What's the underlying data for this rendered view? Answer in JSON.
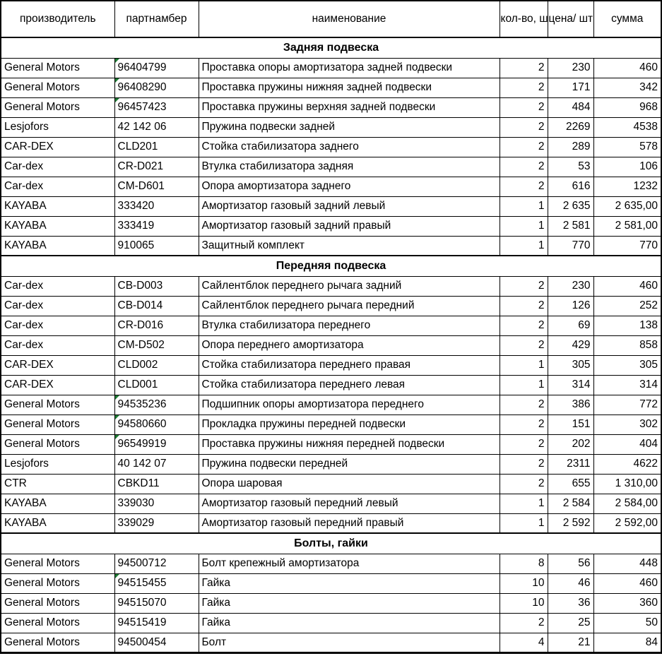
{
  "table": {
    "header": [
      "производитель",
      "партнамбер",
      "наименование",
      "кол-во,\nшт",
      "цена/\nшт",
      "сумма"
    ],
    "sections": [
      {
        "title": "Задняя подвеска",
        "rows": [
          {
            "manufacturer": "General Motors",
            "partnumber": "96404799",
            "name": "Проставка опоры амортизатора задней подвески",
            "qty": "2",
            "price": "230",
            "sum": "460",
            "flag": true
          },
          {
            "manufacturer": "General Motors",
            "partnumber": "96408290",
            "name": "Проставка пружины нижняя задней подвески",
            "qty": "2",
            "price": "171",
            "sum": "342",
            "flag": true
          },
          {
            "manufacturer": "General Motors",
            "partnumber": "96457423",
            "name": "Проставка пружины верхняя задней подвески",
            "qty": "2",
            "price": "484",
            "sum": "968",
            "flag": true
          },
          {
            "manufacturer": "Lesjofors",
            "partnumber": "42 142 06",
            "name": "Пружина подвески задней",
            "qty": "2",
            "price": "2269",
            "sum": "4538",
            "flag": false
          },
          {
            "manufacturer": "CAR-DEX",
            "partnumber": "CLD201",
            "name": "Стойка стабилизатора заднего",
            "qty": "2",
            "price": "289",
            "sum": "578",
            "flag": false
          },
          {
            "manufacturer": "Car-dex",
            "partnumber": "CR-D021",
            "name": "Втулка стабилизатора задняя",
            "qty": "2",
            "price": "53",
            "sum": "106",
            "flag": false
          },
          {
            "manufacturer": "Car-dex",
            "partnumber": "CM-D601",
            "name": "Опора амортизатора заднего",
            "qty": "2",
            "price": "616",
            "sum": "1232",
            "flag": false
          },
          {
            "manufacturer": "KAYABA",
            "partnumber": "333420",
            "name": "Амортизатор газовый задний левый",
            "qty": "1",
            "price": "2 635",
            "sum": "2 635,00",
            "flag": false
          },
          {
            "manufacturer": "KAYABA",
            "partnumber": "333419",
            "name": "Амортизатор газовый задний правый",
            "qty": "1",
            "price": "2 581",
            "sum": "2 581,00",
            "flag": false
          },
          {
            "manufacturer": "KAYABA",
            "partnumber": "910065",
            "name": "Защитный комплект",
            "qty": "1",
            "price": "770",
            "sum": "770",
            "flag": false
          }
        ]
      },
      {
        "title": "Передняя подвеска",
        "rows": [
          {
            "manufacturer": "Car-dex",
            "partnumber": "CB-D003",
            "name": "Сайлентблок переднего рычага задний",
            "qty": "2",
            "price": "230",
            "sum": "460",
            "flag": false
          },
          {
            "manufacturer": "Car-dex",
            "partnumber": "CB-D014",
            "name": "Сайлентблок переднего рычага передний",
            "qty": "2",
            "price": "126",
            "sum": "252",
            "flag": false
          },
          {
            "manufacturer": "Car-dex",
            "partnumber": "CR-D016",
            "name": "Втулка стабилизатора переднего",
            "qty": "2",
            "price": "69",
            "sum": "138",
            "flag": false
          },
          {
            "manufacturer": "Car-dex",
            "partnumber": "CM-D502",
            "name": "Опора переднего амортизатора",
            "qty": "2",
            "price": "429",
            "sum": "858",
            "flag": false
          },
          {
            "manufacturer": "CAR-DEX",
            "partnumber": "CLD002",
            "name": "Стойка стабилизатора переднего правая",
            "qty": "1",
            "price": "305",
            "sum": "305",
            "flag": false
          },
          {
            "manufacturer": "CAR-DEX",
            "partnumber": "CLD001",
            "name": "Стойка стабилизатора переднего левая",
            "qty": "1",
            "price": "314",
            "sum": "314",
            "flag": false
          },
          {
            "manufacturer": "General Motors",
            "partnumber": "94535236",
            "name": "Подшипник опоры амортизатора переднего",
            "qty": "2",
            "price": "386",
            "sum": "772",
            "flag": true
          },
          {
            "manufacturer": "General Motors",
            "partnumber": "94580660",
            "name": "Прокладка пружины передней подвески",
            "qty": "2",
            "price": "151",
            "sum": "302",
            "flag": true
          },
          {
            "manufacturer": "General Motors",
            "partnumber": "96549919",
            "name": "Проставка пружины нижняя передней подвески",
            "qty": "2",
            "price": "202",
            "sum": "404",
            "flag": true
          },
          {
            "manufacturer": "Lesjofors",
            "partnumber": "40 142 07",
            "name": "Пружина подвески передней",
            "qty": "2",
            "price": "2311",
            "sum": "4622",
            "flag": false
          },
          {
            "manufacturer": "CTR",
            "partnumber": "CBKD11",
            "name": "Опора шаровая",
            "qty": "2",
            "price": "655",
            "sum": "1 310,00",
            "flag": false
          },
          {
            "manufacturer": "KAYABA",
            "partnumber": "339030",
            "name": "Амортизатор газовый передний левый",
            "qty": "1",
            "price": "2 584",
            "sum": "2 584,00",
            "flag": false
          },
          {
            "manufacturer": "KAYABA",
            "partnumber": "339029",
            "name": "Амортизатор газовый передний правый",
            "qty": "1",
            "price": "2 592",
            "sum": "2 592,00",
            "flag": false
          }
        ]
      },
      {
        "title": "Болты, гайки",
        "rows": [
          {
            "manufacturer": "General Motors",
            "partnumber": "94500712",
            "name": "Болт крепежный амортизатора",
            "qty": "8",
            "price": "56",
            "sum": "448",
            "flag": false
          },
          {
            "manufacturer": "General Motors",
            "partnumber": "94515455",
            "name": "Гайка",
            "qty": "10",
            "price": "46",
            "sum": "460",
            "flag": true
          },
          {
            "manufacturer": "General Motors",
            "partnumber": "94515070",
            "name": "Гайка",
            "qty": "10",
            "price": "36",
            "sum": "360",
            "flag": false
          },
          {
            "manufacturer": "General Motors",
            "partnumber": "94515419",
            "name": "Гайка",
            "qty": "2",
            "price": "25",
            "sum": "50",
            "flag": false
          },
          {
            "manufacturer": "General Motors",
            "partnumber": "94500454",
            "name": "Болт",
            "qty": "4",
            "price": "21",
            "sum": "84",
            "flag": false
          }
        ]
      }
    ]
  },
  "colors": {
    "flag_green": "#1E7B34",
    "border": "#000000",
    "text": "#000000",
    "background": "#FFFFFF"
  }
}
